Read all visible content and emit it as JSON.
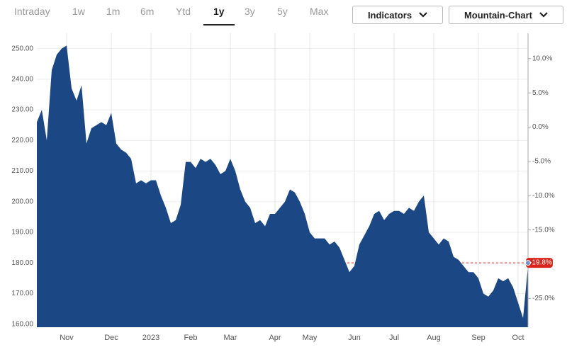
{
  "toolbar": {
    "ranges": [
      "Intraday",
      "1w",
      "1m",
      "6m",
      "Ytd",
      "1y",
      "3y",
      "5y",
      "Max"
    ],
    "selected": "1y",
    "buttons": [
      "Indicators",
      "Mountain-Chart"
    ]
  },
  "chart_data": {
    "type": "area",
    "color": "#1b4785",
    "categories": [
      null,
      null,
      null,
      null,
      null,
      null,
      "Nov",
      null,
      null,
      null,
      null,
      null,
      null,
      null,
      null,
      "Dec",
      null,
      null,
      null,
      null,
      null,
      null,
      null,
      "2023",
      null,
      null,
      null,
      null,
      null,
      null,
      null,
      "Feb",
      null,
      null,
      null,
      null,
      null,
      null,
      null,
      "Mar",
      null,
      null,
      null,
      null,
      null,
      null,
      null,
      null,
      "Apr",
      null,
      null,
      null,
      null,
      null,
      null,
      "May",
      null,
      null,
      null,
      null,
      null,
      null,
      null,
      null,
      "Jun",
      null,
      null,
      null,
      null,
      null,
      null,
      null,
      "Jul",
      null,
      null,
      null,
      null,
      null,
      null,
      null,
      "Aug",
      null,
      null,
      null,
      null,
      null,
      null,
      null,
      null,
      "Sep",
      null,
      null,
      null,
      null,
      null,
      null,
      null,
      "Oct",
      null,
      null
    ],
    "values": [
      226,
      230,
      220,
      243,
      248,
      250,
      251,
      237,
      233,
      238,
      219,
      224,
      225,
      226,
      225,
      229,
      219,
      217,
      216,
      214,
      206,
      207,
      206,
      207,
      207,
      202,
      198,
      193,
      194,
      199,
      213,
      213,
      211,
      214,
      213,
      214,
      212,
      209,
      210,
      214,
      210,
      204,
      200,
      198,
      193,
      194,
      192,
      196,
      196,
      198,
      200,
      204,
      203,
      200,
      196,
      190,
      188,
      188,
      188,
      186,
      187,
      185,
      181,
      177,
      179,
      186,
      189,
      192,
      196,
      197,
      194,
      196,
      197,
      197,
      196,
      198,
      197,
      200,
      202,
      190,
      188,
      186,
      188,
      187,
      182,
      181,
      179,
      177,
      177,
      175,
      170,
      169,
      171,
      175,
      174,
      175,
      172,
      167,
      162,
      179
    ],
    "ylim": [
      159,
      255
    ],
    "yticks": [
      {
        "value": 160,
        "label": "160.00"
      },
      {
        "value": 170,
        "label": "170.00"
      },
      {
        "value": 180,
        "label": "180.00"
      },
      {
        "value": 190,
        "label": "190.00"
      },
      {
        "value": 200,
        "label": "200.00"
      },
      {
        "value": 210,
        "label": "210.00"
      },
      {
        "value": 220,
        "label": "220.00"
      },
      {
        "value": 230,
        "label": "230.00"
      },
      {
        "value": 240,
        "label": "240.00"
      },
      {
        "value": 250,
        "label": "250.00"
      }
    ],
    "y2lim": [
      -29.2,
      13.7
    ],
    "y2ticks": [
      {
        "value": 10,
        "label": "10.0%"
      },
      {
        "value": 5,
        "label": "5.0%"
      },
      {
        "value": 0,
        "label": "0.0%"
      },
      {
        "value": -5,
        "label": "-5.0%"
      },
      {
        "value": -10,
        "label": "-10.0%"
      },
      {
        "value": -15,
        "label": "-15.0%"
      },
      {
        "value": -25,
        "label": "-25.0%"
      }
    ],
    "current": {
      "value": -19.8,
      "label": "-19.8%",
      "color": "#d9261c"
    },
    "grid": true
  }
}
